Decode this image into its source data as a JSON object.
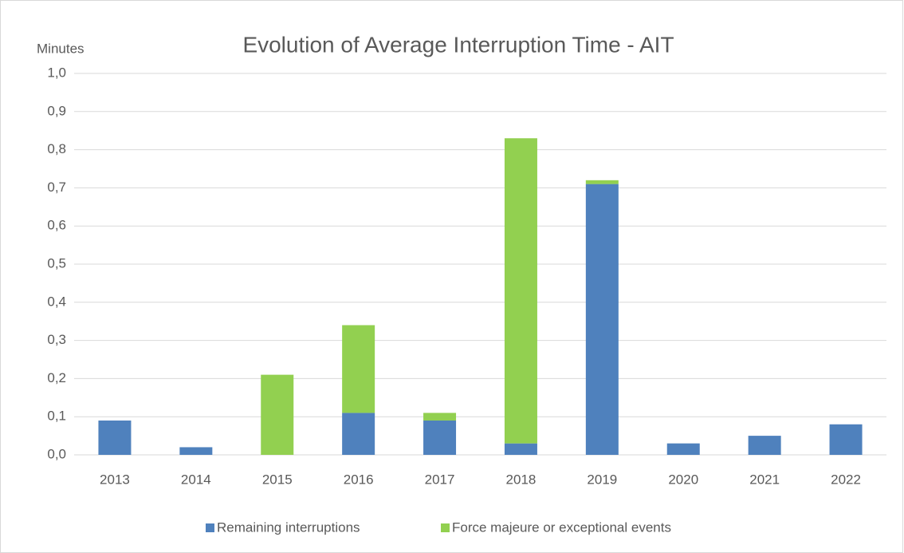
{
  "chart_data": {
    "type": "bar",
    "stacked": true,
    "title": "Evolution of Average Interruption Time - AIT",
    "y_label": "Minutes",
    "categories": [
      "2013",
      "2014",
      "2015",
      "2016",
      "2017",
      "2018",
      "2019",
      "2020",
      "2021",
      "2022"
    ],
    "series": [
      {
        "name": "Remaining interruptions",
        "color": "#4f81bd",
        "values": [
          0.09,
          0.02,
          0,
          0.11,
          0.09,
          0.03,
          0.71,
          0.03,
          0.05,
          0.08
        ]
      },
      {
        "name": "Force majeure or exceptional events",
        "color": "#92d050",
        "values": [
          0,
          0,
          0.21,
          0.23,
          0.02,
          0.8,
          0.01,
          0,
          0,
          0
        ]
      }
    ],
    "ylim": [
      0,
      1
    ],
    "yticks": [
      {
        "value": 0,
        "label": "0,0"
      },
      {
        "value": 0.1,
        "label": "0,1"
      },
      {
        "value": 0.2,
        "label": "0,2"
      },
      {
        "value": 0.3,
        "label": "0,3"
      },
      {
        "value": 0.4,
        "label": "0,4"
      },
      {
        "value": 0.5,
        "label": "0,5"
      },
      {
        "value": 0.6,
        "label": "0,6"
      },
      {
        "value": 0.7,
        "label": "0,7"
      },
      {
        "value": 0.8,
        "label": "0,8"
      },
      {
        "value": 0.9,
        "label": "0,9"
      },
      {
        "value": 1,
        "label": "1,0"
      }
    ],
    "grid": true,
    "legend": "bottom"
  }
}
